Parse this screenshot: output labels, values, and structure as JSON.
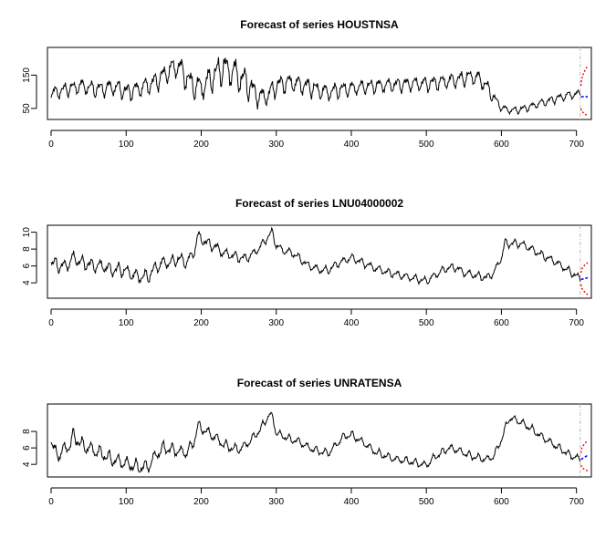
{
  "chart_data": [
    {
      "type": "line",
      "title": "Forecast of series HOUSTNSA",
      "xlim": [
        0,
        715
      ],
      "ylim": [
        25,
        225
      ],
      "xticks": [
        0,
        100,
        200,
        300,
        400,
        500,
        600,
        700
      ],
      "yticks": [
        50,
        150
      ],
      "forecast_start": 705,
      "series": [
        {
          "role": "observed",
          "color": "#000000",
          "points": [
            [
              0,
              95
            ],
            [
              10,
              100
            ],
            [
              20,
              108
            ],
            [
              30,
              112
            ],
            [
              40,
              118
            ],
            [
              50,
              112
            ],
            [
              60,
              108
            ],
            [
              70,
              110
            ],
            [
              80,
              114
            ],
            [
              90,
              110
            ],
            [
              100,
              100
            ],
            [
              110,
              104
            ],
            [
              120,
              112
            ],
            [
              130,
              120
            ],
            [
              140,
              132
            ],
            [
              150,
              150
            ],
            [
              160,
              168
            ],
            [
              170,
              178
            ],
            [
              175,
              160
            ],
            [
              180,
              142
            ],
            [
              190,
              118
            ],
            [
              200,
              112
            ],
            [
              210,
              132
            ],
            [
              220,
              156
            ],
            [
              230,
              172
            ],
            [
              240,
              162
            ],
            [
              250,
              146
            ],
            [
              260,
              128
            ],
            [
              270,
              100
            ],
            [
              280,
              82
            ],
            [
              290,
              92
            ],
            [
              300,
              118
            ],
            [
              310,
              126
            ],
            [
              320,
              128
            ],
            [
              330,
              122
            ],
            [
              340,
              117
            ],
            [
              350,
              110
            ],
            [
              360,
              102
            ],
            [
              370,
              98
            ],
            [
              380,
              104
            ],
            [
              390,
              108
            ],
            [
              400,
              110
            ],
            [
              420,
              116
            ],
            [
              440,
              119
            ],
            [
              460,
              121
            ],
            [
              480,
              124
            ],
            [
              500,
              124
            ],
            [
              520,
              129
            ],
            [
              540,
              136
            ],
            [
              560,
              146
            ],
            [
              570,
              140
            ],
            [
              580,
              117
            ],
            [
              590,
              82
            ],
            [
              600,
              52
            ],
            [
              610,
              45
            ],
            [
              620,
              44
            ],
            [
              630,
              50
            ],
            [
              640,
              56
            ],
            [
              650,
              65
            ],
            [
              660,
              70
            ],
            [
              670,
              78
            ],
            [
              680,
              84
            ],
            [
              690,
              90
            ],
            [
              700,
              92
            ],
            [
              705,
              94
            ]
          ],
          "seasonal_amplitude": [
            [
              0,
              15
            ],
            [
              140,
              22
            ],
            [
              250,
              38
            ],
            [
              280,
              24
            ],
            [
              420,
              16
            ],
            [
              580,
              18
            ],
            [
              600,
              8
            ],
            [
              705,
              10
            ]
          ]
        },
        {
          "role": "point-forecast",
          "color": "#0000ff",
          "points": [
            [
              706,
              85
            ],
            [
              715,
              85
            ]
          ]
        },
        {
          "role": "upper-bound",
          "color": "#ff0000",
          "points": [
            [
              706,
              118
            ],
            [
              715,
              178
            ]
          ]
        },
        {
          "role": "lower-bound",
          "color": "#ff0000",
          "points": [
            [
              706,
              50
            ],
            [
              715,
              28
            ]
          ]
        }
      ]
    },
    {
      "type": "line",
      "title": "Forecast of series LNU04000002",
      "xlim": [
        0,
        715
      ],
      "ylim": [
        2.5,
        10.5
      ],
      "xticks": [
        0,
        100,
        200,
        300,
        400,
        500,
        600,
        700
      ],
      "yticks": [
        4,
        6,
        8,
        10
      ],
      "forecast_start": 705,
      "series": [
        {
          "role": "observed",
          "color": "#000000",
          "points": [
            [
              0,
              6.5
            ],
            [
              10,
              6.0
            ],
            [
              20,
              6.0
            ],
            [
              30,
              7.0
            ],
            [
              40,
              6.4
            ],
            [
              50,
              6.2
            ],
            [
              60,
              6.0
            ],
            [
              70,
              6.0
            ],
            [
              80,
              5.5
            ],
            [
              90,
              5.6
            ],
            [
              100,
              5.4
            ],
            [
              110,
              4.9
            ],
            [
              120,
              4.7
            ],
            [
              130,
              4.8
            ],
            [
              140,
              5.9
            ],
            [
              150,
              6.4
            ],
            [
              160,
              6.4
            ],
            [
              170,
              6.9
            ],
            [
              180,
              6.4
            ],
            [
              190,
              7.5
            ],
            [
              195,
              9.5
            ],
            [
              200,
              9.2
            ],
            [
              210,
              8.6
            ],
            [
              220,
              8.2
            ],
            [
              230,
              7.5
            ],
            [
              240,
              7.3
            ],
            [
              250,
              7.0
            ],
            [
              260,
              6.9
            ],
            [
              270,
              7.5
            ],
            [
              280,
              8.4
            ],
            [
              290,
              9.6
            ],
            [
              295,
              10.0
            ],
            [
              300,
              8.4
            ],
            [
              310,
              7.8
            ],
            [
              320,
              7.6
            ],
            [
              330,
              7.0
            ],
            [
              340,
              6.2
            ],
            [
              350,
              5.8
            ],
            [
              360,
              5.5
            ],
            [
              370,
              5.5
            ],
            [
              380,
              6.2
            ],
            [
              390,
              6.6
            ],
            [
              400,
              7.0
            ],
            [
              410,
              6.6
            ],
            [
              420,
              6.2
            ],
            [
              430,
              5.8
            ],
            [
              440,
              5.5
            ],
            [
              450,
              5.2
            ],
            [
              460,
              5.0
            ],
            [
              470,
              4.8
            ],
            [
              480,
              4.6
            ],
            [
              490,
              4.4
            ],
            [
              500,
              4.2
            ],
            [
              510,
              4.8
            ],
            [
              520,
              5.4
            ],
            [
              530,
              5.8
            ],
            [
              540,
              5.8
            ],
            [
              550,
              5.2
            ],
            [
              560,
              5.0
            ],
            [
              570,
              4.8
            ],
            [
              580,
              4.6
            ],
            [
              590,
              5.2
            ],
            [
              600,
              7.0
            ],
            [
              605,
              8.8
            ],
            [
              610,
              8.6
            ],
            [
              620,
              8.7
            ],
            [
              630,
              8.5
            ],
            [
              640,
              8.0
            ],
            [
              650,
              7.5
            ],
            [
              660,
              7.0
            ],
            [
              670,
              6.6
            ],
            [
              680,
              6.0
            ],
            [
              690,
              5.4
            ],
            [
              700,
              4.8
            ],
            [
              705,
              4.5
            ]
          ],
          "seasonal_amplitude": [
            [
              0,
              0.6
            ],
            [
              140,
              0.6
            ],
            [
              300,
              0.35
            ],
            [
              705,
              0.35
            ]
          ]
        },
        {
          "role": "point-forecast",
          "color": "#0000ff",
          "points": [
            [
              706,
              4.4
            ],
            [
              715,
              4.6
            ]
          ]
        },
        {
          "role": "upper-bound",
          "color": "#ff0000",
          "points": [
            [
              706,
              5.2
            ],
            [
              715,
              6.4
            ]
          ]
        },
        {
          "role": "lower-bound",
          "color": "#ff0000",
          "points": [
            [
              706,
              3.8
            ],
            [
              715,
              2.6
            ]
          ]
        }
      ]
    },
    {
      "type": "line",
      "title": "Forecast of series UNRATENSA",
      "xlim": [
        0,
        715
      ],
      "ylim": [
        2.8,
        11.0
      ],
      "xticks": [
        0,
        100,
        200,
        300,
        400,
        500,
        600,
        700
      ],
      "yticks": [
        4,
        6,
        8
      ],
      "forecast_start": 705,
      "series": [
        {
          "role": "observed",
          "color": "#000000",
          "points": [
            [
              0,
              7.0
            ],
            [
              5,
              5.4
            ],
            [
              10,
              5.2
            ],
            [
              20,
              6.0
            ],
            [
              25,
              6.4
            ],
            [
              30,
              7.5
            ],
            [
              40,
              6.4
            ],
            [
              50,
              6.0
            ],
            [
              60,
              5.6
            ],
            [
              70,
              5.2
            ],
            [
              80,
              4.6
            ],
            [
              90,
              4.4
            ],
            [
              100,
              4.1
            ],
            [
              110,
              3.8
            ],
            [
              120,
              3.6
            ],
            [
              130,
              3.8
            ],
            [
              140,
              5.2
            ],
            [
              150,
              6.0
            ],
            [
              160,
              5.8
            ],
            [
              170,
              5.6
            ],
            [
              180,
              5.4
            ],
            [
              190,
              6.6
            ],
            [
              195,
              8.6
            ],
            [
              200,
              8.4
            ],
            [
              210,
              7.8
            ],
            [
              220,
              7.2
            ],
            [
              230,
              6.4
            ],
            [
              240,
              6.0
            ],
            [
              250,
              5.8
            ],
            [
              260,
              6.4
            ],
            [
              270,
              7.3
            ],
            [
              280,
              8.4
            ],
            [
              290,
              10.0
            ],
            [
              295,
              9.8
            ],
            [
              300,
              7.8
            ],
            [
              310,
              7.4
            ],
            [
              320,
              7.0
            ],
            [
              330,
              6.8
            ],
            [
              340,
              6.2
            ],
            [
              350,
              5.8
            ],
            [
              360,
              5.5
            ],
            [
              370,
              5.4
            ],
            [
              380,
              6.4
            ],
            [
              390,
              7.4
            ],
            [
              400,
              7.6
            ],
            [
              410,
              7.0
            ],
            [
              420,
              6.4
            ],
            [
              430,
              5.6
            ],
            [
              440,
              5.2
            ],
            [
              450,
              4.9
            ],
            [
              460,
              4.6
            ],
            [
              470,
              4.5
            ],
            [
              480,
              4.3
            ],
            [
              490,
              4.1
            ],
            [
              500,
              3.9
            ],
            [
              510,
              4.8
            ],
            [
              520,
              5.4
            ],
            [
              530,
              6.0
            ],
            [
              540,
              5.8
            ],
            [
              550,
              5.4
            ],
            [
              560,
              5.0
            ],
            [
              570,
              4.8
            ],
            [
              580,
              4.6
            ],
            [
              590,
              5.0
            ],
            [
              600,
              7.0
            ],
            [
              610,
              9.6
            ],
            [
              620,
              9.4
            ],
            [
              630,
              8.9
            ],
            [
              640,
              8.3
            ],
            [
              650,
              7.6
            ],
            [
              660,
              7.0
            ],
            [
              670,
              6.4
            ],
            [
              680,
              5.8
            ],
            [
              690,
              5.2
            ],
            [
              700,
              4.8
            ],
            [
              705,
              4.6
            ]
          ],
          "seasonal_amplitude": [
            [
              0,
              0.7
            ],
            [
              140,
              0.6
            ],
            [
              300,
              0.35
            ],
            [
              705,
              0.35
            ]
          ]
        },
        {
          "role": "point-forecast",
          "color": "#0000ff",
          "points": [
            [
              706,
              4.6
            ],
            [
              715,
              5.1
            ]
          ]
        },
        {
          "role": "upper-bound",
          "color": "#ff0000",
          "points": [
            [
              706,
              5.4
            ],
            [
              715,
              6.9
            ]
          ]
        },
        {
          "role": "lower-bound",
          "color": "#ff0000",
          "points": [
            [
              706,
              3.9
            ],
            [
              715,
              3.2
            ]
          ]
        }
      ]
    }
  ]
}
